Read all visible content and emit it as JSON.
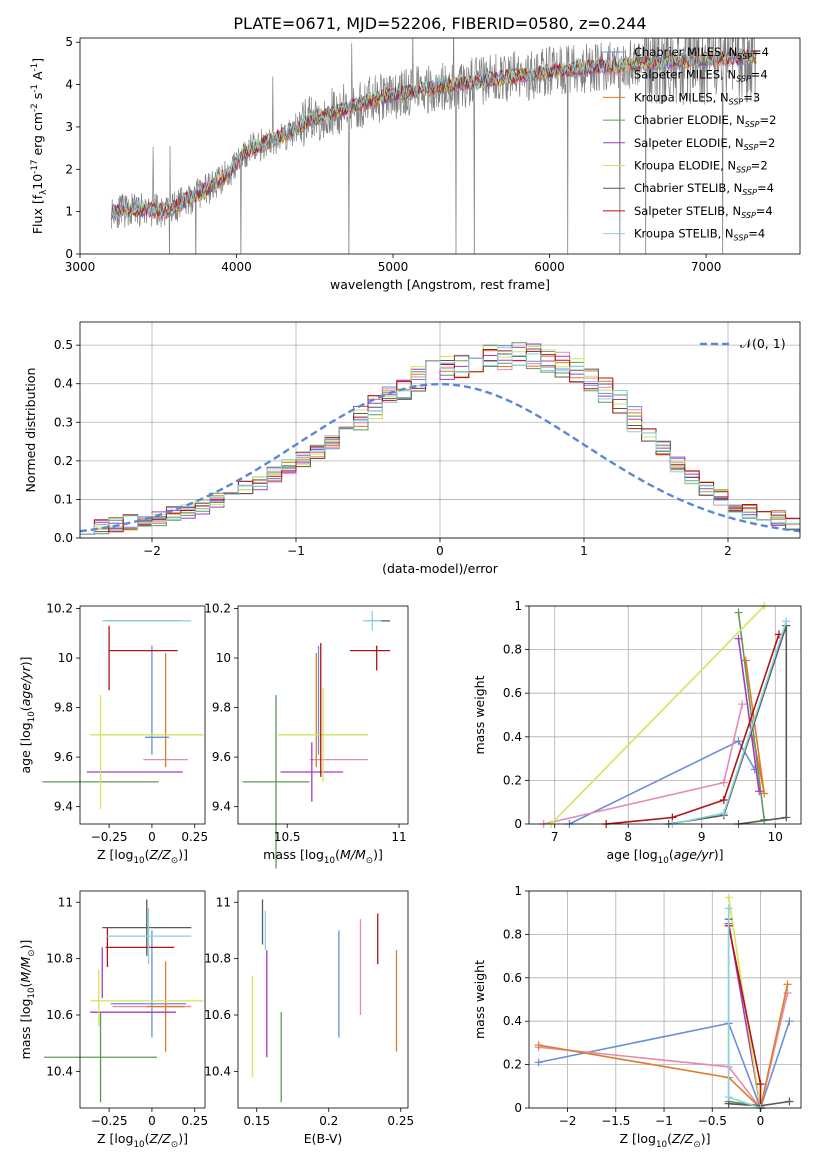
{
  "figure": {
    "title": "PLATE=0671, MJD=52206, FIBERID=0580, z=0.244"
  },
  "colors": {
    "chabrier_miles": "#6a8fd8",
    "salpeter_miles": "#e38bb3",
    "kroupa_miles": "#e07b28",
    "chabrier_elodie": "#5f9a5c",
    "salpeter_elodie": "#a23cc4",
    "kroupa_elodie": "#d2e45a",
    "chabrier_stelib": "#595959",
    "salpeter_stelib": "#b01414",
    "kroupa_stelib": "#86d4dc",
    "data": "#808080",
    "gaussian": "#5b87d6"
  },
  "chart_data": [
    {
      "id": "spectrum",
      "type": "line",
      "title": "PLATE=0671, MJD=52206, FIBERID=0580, z=0.244",
      "xlabel": "wavelength [Angstrom, rest frame]",
      "ylabel": "Flux [f$_\\lambda$10$^{-17}$ erg cm$^{-2}$ s$^{-1}$ A$^{-1}$]",
      "xlim": [
        3000,
        7600
      ],
      "ylim": [
        0,
        5.1
      ],
      "xticks": [
        "3000",
        "4000",
        "5000",
        "6000",
        "7000"
      ],
      "yticks": [
        "0",
        "1",
        "2",
        "3",
        "4",
        "5"
      ],
      "legend_position": "top-right",
      "legend": [
        {
          "label": "Chabrier MILES, N",
          "sub": "SSP",
          "eq": "=4",
          "color": "#6a8fd8"
        },
        {
          "label": "Salpeter MILES, N",
          "sub": "SSP",
          "eq": "=4",
          "color": "#e38bb3"
        },
        {
          "label": "Kroupa MILES, N",
          "sub": "SSP",
          "eq": "=3",
          "color": "#e07b28"
        },
        {
          "label": "Chabrier ELODIE, N",
          "sub": "SSP",
          "eq": "=2",
          "color": "#5f9a5c"
        },
        {
          "label": "Salpeter ELODIE, N",
          "sub": "SSP",
          "eq": "=2",
          "color": "#a23cc4"
        },
        {
          "label": "Kroupa ELODIE, N",
          "sub": "SSP",
          "eq": "=2",
          "color": "#d2e45a"
        },
        {
          "label": "Chabrier STELIB, N",
          "sub": "SSP",
          "eq": "=4",
          "color": "#595959"
        },
        {
          "label": "Salpeter STELIB, N",
          "sub": "SSP",
          "eq": "=4",
          "color": "#b01414"
        },
        {
          "label": "Kroupa STELIB, N",
          "sub": "SSP",
          "eq": "=4",
          "color": "#86d4dc"
        }
      ],
      "continuum_x": [
        3200,
        3400,
        3550,
        3700,
        3850,
        3950,
        4050,
        4300,
        4500,
        4800,
        5000,
        5300,
        5600,
        6000,
        6400,
        6800,
        7300
      ],
      "continuum_y": [
        1.0,
        1.05,
        1.0,
        1.3,
        1.6,
        1.9,
        2.4,
        2.8,
        3.2,
        3.55,
        3.75,
        3.95,
        4.1,
        4.3,
        4.45,
        4.55,
        4.65
      ]
    },
    {
      "id": "residuals",
      "type": "line",
      "xlabel": "(data-model)/error",
      "ylabel": "Normed distribution",
      "xlim": [
        -2.5,
        2.5
      ],
      "ylim": [
        0,
        0.56
      ],
      "grid": true,
      "xticks": [
        "−2",
        "−1",
        "0",
        "1",
        "2"
      ],
      "yticks": [
        "0.0",
        "0.1",
        "0.2",
        "0.3",
        "0.4",
        "0.5"
      ],
      "legend_position": "top-right",
      "legend": [
        {
          "label": "𝒩(0, 1)",
          "color": "#5b87d6"
        }
      ],
      "bin_width": 0.1,
      "hist_base": [
        0.025,
        0.03,
        0.035,
        0.04,
        0.045,
        0.05,
        0.06,
        0.07,
        0.08,
        0.095,
        0.11,
        0.13,
        0.145,
        0.165,
        0.185,
        0.205,
        0.225,
        0.25,
        0.28,
        0.31,
        0.34,
        0.37,
        0.39,
        0.41,
        0.43,
        0.44,
        0.45,
        0.46,
        0.47,
        0.47,
        0.48,
        0.47,
        0.46,
        0.45,
        0.43,
        0.41,
        0.38,
        0.35,
        0.31,
        0.27,
        0.23,
        0.19,
        0.16,
        0.13,
        0.105,
        0.085,
        0.07,
        0.06,
        0.05,
        0.04
      ]
    },
    {
      "id": "age_vs_Z",
      "type": "scatter",
      "xlabel": "Z [log$_{10}$($Z/Z_\\odot$)]",
      "ylabel": "age  [log$_{10}$($age/yr$)]",
      "xlim": [
        -0.42,
        0.31
      ],
      "ylim": [
        9.33,
        10.21
      ],
      "xticks": [
        -0.25,
        0.0,
        0.25
      ],
      "yticks": [
        9.4,
        9.6,
        9.8,
        10.0,
        10.2
      ],
      "points": [
        {
          "model": "Chabrier MILES",
          "x": 0.0,
          "xerr": 0.0,
          "y": 9.83,
          "yerr": 0.22,
          "color": "#6a8fd8",
          "hx": [
            -0.02,
            0.02
          ]
        },
        {
          "model": "Salpeter MILES",
          "x": 0.08,
          "y": 9.59,
          "xerr": 0.13,
          "yerr": 0.0,
          "color": "#e38bb3"
        },
        {
          "model": "Kroupa MILES",
          "x": 0.08,
          "y": 9.79,
          "xerr": 0.0,
          "yerr": 0.23,
          "color": "#e07b28"
        },
        {
          "model": "Chabrier ELODIE",
          "x": -0.3,
          "y": 9.5,
          "xerr": 0.34,
          "yerr": 0.0,
          "color": "#5f9a5c"
        },
        {
          "model": "Salpeter ELODIE",
          "x": -0.1,
          "y": 9.54,
          "xerr": 0.28,
          "yerr": 0.0,
          "color": "#a23cc4"
        },
        {
          "model": "Kroupa ELODIE",
          "x": -0.3,
          "y": 9.62,
          "xerr": 0.0,
          "yerr": 0.23,
          "color": "#d2e45a"
        },
        {
          "model": "Kroupa ELODIE (Z)",
          "x": -0.03,
          "y": 9.69,
          "xerr": 0.33,
          "yerr": 0.0,
          "color": "#d2e45a"
        },
        {
          "model": "Chabrier STELIB",
          "x": -0.05,
          "y": 10.15,
          "xerr": 0.22,
          "yerr": 0.0,
          "color": "#595959"
        },
        {
          "model": "Salpeter STELIB",
          "x": -0.05,
          "y": 10.03,
          "xerr": 0.2,
          "yerr": 0.0,
          "color": "#b01414"
        },
        {
          "model": "Salpeter STELIB (age)",
          "x": -0.25,
          "y": 10.0,
          "xerr": 0.0,
          "yerr": 0.13,
          "color": "#b01414"
        },
        {
          "model": "Kroupa STELIB",
          "x": -0.03,
          "y": 10.15,
          "xerr": 0.26,
          "yerr": 0.0,
          "color": "#86d4dc"
        },
        {
          "model": "Chabrier MILES (Z)",
          "x": 0.03,
          "y": 9.68,
          "xerr": 0.07,
          "yerr": 0.0,
          "color": "#6a8fd8"
        }
      ]
    },
    {
      "id": "age_vs_mass",
      "type": "scatter",
      "xlabel": "mass [log$_{10}$($M/M_\\odot$)]",
      "ylabel": "",
      "xlim": [
        10.28,
        11.04
      ],
      "ylim": [
        9.33,
        10.21
      ],
      "xticks": [
        10.5,
        11.0
      ],
      "yticks": [
        9.4,
        9.6,
        9.8,
        10.0,
        10.2
      ],
      "points": [
        {
          "model": "Chabrier MILES",
          "x": 10.64,
          "y": 9.83,
          "xerr": 0.0,
          "yerr": 0.22,
          "color": "#6a8fd8"
        },
        {
          "model": "Chabrier MILES (m)",
          "x": 10.78,
          "y": 9.69,
          "xerr": 0.08,
          "yerr": 0.0,
          "color": "#6a8fd8"
        },
        {
          "model": "Salpeter MILES",
          "x": 10.73,
          "y": 9.59,
          "xerr": 0.13,
          "yerr": 0.0,
          "color": "#e38bb3"
        },
        {
          "model": "Kroupa MILES",
          "x": 10.63,
          "y": 9.79,
          "xerr": 0.0,
          "yerr": 0.23,
          "color": "#e07b28"
        },
        {
          "model": "Chabrier ELODIE",
          "x": 10.45,
          "y": 9.5,
          "xerr": 0.15,
          "yerr": 0.35,
          "color": "#5f9a5c"
        },
        {
          "model": "Salpeter ELODIE",
          "x": 10.61,
          "y": 9.54,
          "xerr": 0.14,
          "yerr": 0.12,
          "color": "#a23cc4"
        },
        {
          "model": "Kroupa ELODIE",
          "x": 10.66,
          "y": 9.69,
          "xerr": 0.2,
          "yerr": 0.19,
          "color": "#d2e45a"
        },
        {
          "model": "Chabrier STELIB",
          "x": 10.91,
          "y": 10.15,
          "xerr": 0.05,
          "yerr": 0.0,
          "color": "#595959"
        },
        {
          "model": "Salpeter STELIB",
          "x": 10.87,
          "y": 10.03,
          "xerr": 0.09,
          "yerr": 0.0,
          "color": "#b01414"
        },
        {
          "model": "Salpeter STELIB (age)",
          "x": 10.9,
          "y": 10.0,
          "xerr": 0.0,
          "yerr": 0.05,
          "color": "#b01414"
        },
        {
          "model": "Kroupa STELIB",
          "x": 10.88,
          "y": 10.15,
          "xerr": 0.04,
          "yerr": 0.04,
          "color": "#86d4dc"
        },
        {
          "model": "Salpeter MILES (age)",
          "x": 10.65,
          "y": 9.79,
          "xerr": 0.0,
          "yerr": 0.27,
          "color": "#b01414"
        }
      ]
    },
    {
      "id": "weight_vs_age",
      "type": "line",
      "xlabel": "age  [log$_{10}$($age/yr$)]",
      "ylabel": "mass weight",
      "xlim": [
        6.65,
        10.35
      ],
      "ylim": [
        0,
        1.0
      ],
      "grid": true,
      "xticks": [
        7,
        8,
        9,
        10
      ],
      "yticks": [
        0.0,
        0.2,
        0.4,
        0.6,
        0.8,
        1.0
      ],
      "series": [
        {
          "model": "Chabrier MILES",
          "color": "#6a8fd8",
          "x": [
            7.2,
            9.5,
            9.72
          ],
          "y": [
            0.0,
            0.38,
            0.25
          ]
        },
        {
          "model": "Salpeter MILES",
          "color": "#e38bb3",
          "x": [
            6.85,
            9.3,
            9.55
          ],
          "y": [
            0.0,
            0.19,
            0.55
          ]
        },
        {
          "model": "Kroupa MILES",
          "color": "#e07b28",
          "x": [
            9.7,
            9.85,
            9.6
          ],
          "y": [
            0.4,
            0.14,
            0.75
          ]
        },
        {
          "model": "Chabrier ELODIE",
          "color": "#5f9a5c",
          "x": [
            9.5,
            9.85
          ],
          "y": [
            0.97,
            0.02
          ]
        },
        {
          "model": "Salpeter ELODIE",
          "color": "#a23cc4",
          "x": [
            9.5,
            9.78
          ],
          "y": [
            0.85,
            0.15
          ]
        },
        {
          "model": "Kroupa ELODIE",
          "color": "#d2e45a",
          "x": [
            6.95,
            9.85
          ],
          "y": [
            0.0,
            1.0
          ]
        },
        {
          "model": "Chabrier STELIB",
          "color": "#595959",
          "x": [
            8.55,
            9.3,
            10.15,
            10.15,
            9.5
          ],
          "y": [
            0.0,
            0.04,
            0.91,
            0.03,
            0.0
          ]
        },
        {
          "model": "Salpeter STELIB",
          "color": "#b01414",
          "x": [
            7.7,
            8.6,
            9.3,
            10.05
          ],
          "y": [
            0.0,
            0.03,
            0.11,
            0.87
          ]
        },
        {
          "model": "Kroupa STELIB",
          "color": "#86d4dc",
          "x": [
            8.6,
            9.3,
            10.15
          ],
          "y": [
            0.0,
            0.05,
            0.93
          ]
        }
      ]
    },
    {
      "id": "mass_vs_Z",
      "type": "scatter",
      "xlabel": "Z [log$_{10}$($Z/Z_\\odot$)]",
      "ylabel": "mass [log$_{10}$($M/M_\\odot$)]",
      "xlim": [
        -0.42,
        0.31
      ],
      "ylim": [
        10.27,
        11.04
      ],
      "xticks": [
        -0.25,
        0.0,
        0.25
      ],
      "yticks": [
        10.4,
        10.6,
        10.8,
        11.0
      ],
      "points": [
        {
          "model": "Chabrier MILES",
          "x": 0.0,
          "y": 10.71,
          "xerr": 0.0,
          "yerr": 0.19,
          "color": "#6a8fd8"
        },
        {
          "model": "Chabrier MILES (Z)",
          "x": -0.02,
          "y": 10.64,
          "xerr": 0.22,
          "yerr": 0.0,
          "color": "#6a8fd8"
        },
        {
          "model": "Salpeter MILES",
          "x": 0.0,
          "y": 10.63,
          "xerr": 0.23,
          "yerr": 0.0,
          "color": "#e38bb3"
        },
        {
          "model": "Kroupa MILES",
          "x": 0.08,
          "y": 10.63,
          "xerr": 0.11,
          "yerr": 0.16,
          "color": "#e07b28"
        },
        {
          "model": "Chabrier ELODIE",
          "x": -0.3,
          "y": 10.45,
          "xerr": 0.33,
          "yerr": 0.16,
          "color": "#5f9a5c"
        },
        {
          "model": "Salpeter ELODIE",
          "x": -0.11,
          "y": 10.61,
          "xerr": 0.25,
          "yerr": 0.0,
          "color": "#a23cc4"
        },
        {
          "model": "Salpeter ELODIE (m)",
          "x": -0.29,
          "y": 10.75,
          "xerr": 0.0,
          "yerr": 0.09,
          "color": "#a23cc4"
        },
        {
          "model": "Kroupa ELODIE",
          "x": -0.03,
          "y": 10.65,
          "xerr": 0.33,
          "yerr": 0.0,
          "color": "#d2e45a"
        },
        {
          "model": "Kroupa ELODIE (m)",
          "x": -0.31,
          "y": 10.66,
          "xerr": 0.0,
          "yerr": 0.1,
          "color": "#d2e45a"
        },
        {
          "model": "Chabrier STELIB",
          "x": -0.03,
          "y": 10.91,
          "xerr": 0.26,
          "yerr": 0.1,
          "color": "#595959"
        },
        {
          "model": "Salpeter STELIB",
          "x": -0.07,
          "y": 10.84,
          "xerr": 0.2,
          "yerr": 0.0,
          "color": "#b01414"
        },
        {
          "model": "Salpeter STELIB (m)",
          "x": -0.26,
          "y": 10.84,
          "xerr": 0.0,
          "yerr": 0.07,
          "color": "#b01414"
        },
        {
          "model": "Kroupa STELIB",
          "x": -0.02,
          "y": 10.88,
          "xerr": 0.25,
          "yerr": 0.1,
          "color": "#86d4dc"
        }
      ]
    },
    {
      "id": "mass_vs_EBV",
      "type": "scatter",
      "xlabel": "E(B-V)",
      "ylabel": "",
      "xlim": [
        0.137,
        0.255
      ],
      "ylim": [
        10.27,
        11.04
      ],
      "xticks": [
        0.15,
        0.2,
        0.25
      ],
      "yticks": [
        10.4,
        10.6,
        10.8,
        11.0
      ],
      "points": [
        {
          "model": "Chabrier MILES",
          "x": 0.207,
          "y": 10.71,
          "xerr": 0.0,
          "yerr": 0.19,
          "color": "#6a8fd8"
        },
        {
          "model": "Salpeter MILES",
          "x": 0.222,
          "y": 10.77,
          "xerr": 0.0,
          "yerr": 0.17,
          "color": "#e38bb3"
        },
        {
          "model": "Kroupa MILES",
          "x": 0.247,
          "y": 10.65,
          "xerr": 0.0,
          "yerr": 0.18,
          "color": "#e07b28"
        },
        {
          "model": "Chabrier ELODIE",
          "x": 0.167,
          "y": 10.45,
          "xerr": 0.0,
          "yerr": 0.16,
          "color": "#5f9a5c"
        },
        {
          "model": "Salpeter ELODIE",
          "x": 0.157,
          "y": 10.64,
          "xerr": 0.0,
          "yerr": 0.19,
          "color": "#a23cc4"
        },
        {
          "model": "Kroupa ELODIE",
          "x": 0.147,
          "y": 10.56,
          "xerr": 0.0,
          "yerr": 0.18,
          "color": "#d2e45a"
        },
        {
          "model": "Chabrier STELIB",
          "x": 0.154,
          "y": 10.93,
          "xerr": 0.0,
          "yerr": 0.08,
          "color": "#595959"
        },
        {
          "model": "Salpeter STELIB",
          "x": 0.234,
          "y": 10.87,
          "xerr": 0.0,
          "yerr": 0.09,
          "color": "#b01414"
        },
        {
          "model": "Kroupa STELIB",
          "x": 0.156,
          "y": 10.9,
          "xerr": 0.0,
          "yerr": 0.07,
          "color": "#86d4dc"
        }
      ]
    },
    {
      "id": "weight_vs_Z",
      "type": "line",
      "xlabel": "Z [log$_{10}$($Z/Z_\\odot$)]",
      "ylabel": "mass weight",
      "xlim": [
        -2.4,
        0.42
      ],
      "ylim": [
        0,
        1.0
      ],
      "grid": true,
      "xticks": [
        -2.0,
        -1.5,
        -1.0,
        -0.5,
        0.0
      ],
      "yticks": [
        0.0,
        0.2,
        0.4,
        0.6,
        0.8,
        1.0
      ],
      "series": [
        {
          "model": "Chabrier MILES",
          "color": "#6a8fd8",
          "x": [
            -2.3,
            -0.33,
            0.0,
            0.3
          ],
          "y": [
            0.21,
            0.39,
            0.0,
            0.4
          ]
        },
        {
          "model": "Salpeter MILES",
          "color": "#e38bb3",
          "x": [
            -2.3,
            -0.33,
            0.0,
            0.28
          ],
          "y": [
            0.28,
            0.19,
            0.0,
            0.53
          ]
        },
        {
          "model": "Kroupa MILES",
          "color": "#e07b28",
          "x": [
            -2.3,
            -0.33,
            0.0,
            0.28
          ],
          "y": [
            0.29,
            0.14,
            0.0,
            0.57
          ]
        },
        {
          "model": "Chabrier ELODIE",
          "color": "#5f9a5c",
          "x": [
            -0.33,
            0.0
          ],
          "y": [
            0.03,
            0.01
          ]
        },
        {
          "model": "Salpeter ELODIE",
          "color": "#a23cc4",
          "x": [
            -0.33,
            0.0
          ],
          "y": [
            0.85,
            0.0
          ]
        },
        {
          "model": "Kroupa ELODIE",
          "color": "#d2e45a",
          "x": [
            -0.33,
            0.0
          ],
          "y": [
            0.97,
            0.0
          ]
        },
        {
          "model": "Chabrier STELIB",
          "color": "#595959",
          "x": [
            -0.33,
            -0.33,
            0.0,
            0.3
          ],
          "y": [
            0.87,
            0.02,
            0.01,
            0.03
          ]
        },
        {
          "model": "Salpeter STELIB",
          "color": "#b01414",
          "x": [
            -0.33,
            0.0,
            0.0
          ],
          "y": [
            0.84,
            0.11,
            0.0
          ]
        },
        {
          "model": "Kroupa STELIB",
          "color": "#86d4dc",
          "x": [
            -0.33,
            -0.33,
            0.0
          ],
          "y": [
            0.92,
            0.05,
            0.0
          ]
        }
      ]
    }
  ]
}
